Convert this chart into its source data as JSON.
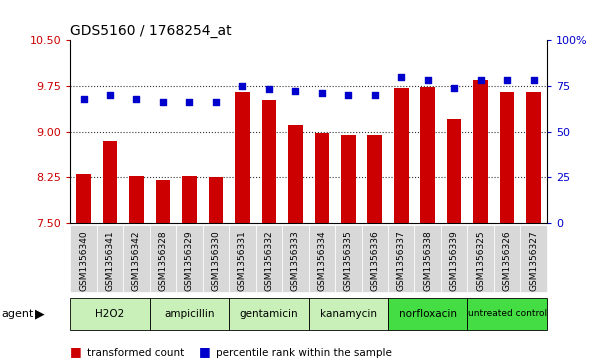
{
  "title": "GDS5160 / 1768254_at",
  "samples": [
    "GSM1356340",
    "GSM1356341",
    "GSM1356342",
    "GSM1356328",
    "GSM1356329",
    "GSM1356330",
    "GSM1356331",
    "GSM1356332",
    "GSM1356333",
    "GSM1356334",
    "GSM1356335",
    "GSM1356336",
    "GSM1356337",
    "GSM1356338",
    "GSM1356339",
    "GSM1356325",
    "GSM1356326",
    "GSM1356327"
  ],
  "transformed_count": [
    8.3,
    8.85,
    8.28,
    8.2,
    8.28,
    8.25,
    9.65,
    9.52,
    9.1,
    8.97,
    8.95,
    8.95,
    9.72,
    9.73,
    9.2,
    9.85,
    9.65,
    9.65
  ],
  "percentile_rank": [
    68,
    70,
    68,
    66,
    66,
    66,
    75,
    73,
    72,
    71,
    70,
    70,
    80,
    78,
    74,
    78,
    78,
    78
  ],
  "agents": [
    {
      "label": "H2O2",
      "start": 0,
      "end": 3,
      "color": "#c8f0b8"
    },
    {
      "label": "ampicillin",
      "start": 3,
      "end": 6,
      "color": "#c8f0b8"
    },
    {
      "label": "gentamicin",
      "start": 6,
      "end": 9,
      "color": "#c8f0b8"
    },
    {
      "label": "kanamycin",
      "start": 9,
      "end": 12,
      "color": "#c8f0b8"
    },
    {
      "label": "norfloxacin",
      "start": 12,
      "end": 15,
      "color": "#44dd44"
    },
    {
      "label": "untreated control",
      "start": 15,
      "end": 18,
      "color": "#44dd44"
    }
  ],
  "ylim_left": [
    7.5,
    10.5
  ],
  "yticks_left": [
    7.5,
    8.25,
    9.0,
    9.75,
    10.5
  ],
  "yticks_right": [
    0,
    25,
    50,
    75,
    100
  ],
  "bar_color": "#cc0000",
  "dot_color": "#0000cc",
  "bg_color": "#ffffff",
  "bar_bottom": 7.5,
  "left_tick_color": "#cc0000",
  "right_tick_color": "#0000cc",
  "xtick_bg": "#d8d8d8",
  "grid_dotted_color": "#333333"
}
